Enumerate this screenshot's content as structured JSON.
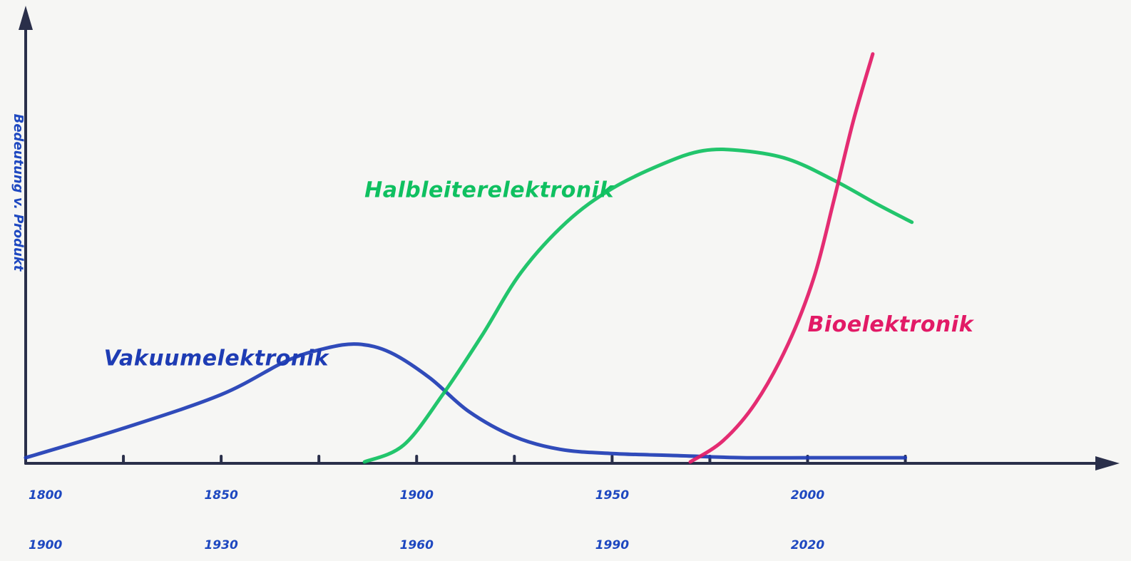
{
  "colors": {
    "axis": "#2a2f4a",
    "vakuum": "#1e3cb4",
    "halbleiter": "#0fc060",
    "bio": "#e21a66",
    "labels": "#1e48c0"
  },
  "chart_data": {
    "type": "line",
    "title": "",
    "xlabel": "",
    "ylabel": "Bedeutung v. Produkt",
    "grid": false,
    "legend": "inline labels",
    "xlim": [
      1900,
      2060
    ],
    "ylim": [
      0,
      100
    ],
    "x_ticks": [
      1900,
      1915,
      1930,
      1945,
      1960,
      1975,
      1990,
      2005,
      2020,
      2035
    ],
    "tick_labels_row1": [
      {
        "x": 1900,
        "label": "1800"
      },
      {
        "x": 1930,
        "label": "1850"
      },
      {
        "x": 1960,
        "label": "1900"
      },
      {
        "x": 1990,
        "label": "1950"
      },
      {
        "x": 2020,
        "label": "2000"
      }
    ],
    "tick_labels_row2": [
      {
        "x": 1900,
        "label": "1900"
      },
      {
        "x": 1930,
        "label": "1930"
      },
      {
        "x": 1960,
        "label": "1960"
      },
      {
        "x": 1990,
        "label": "1990"
      },
      {
        "x": 2020,
        "label": "2020"
      }
    ],
    "series": [
      {
        "name": "Vakuumelektronik",
        "color_key": "vakuum",
        "label_at": [
          1912,
          23
        ],
        "points": [
          [
            1900,
            1
          ],
          [
            1915,
            8
          ],
          [
            1930,
            16
          ],
          [
            1940,
            24
          ],
          [
            1946,
            27
          ],
          [
            1951,
            28
          ],
          [
            1956,
            26
          ],
          [
            1962,
            20
          ],
          [
            1968,
            12
          ],
          [
            1975,
            6
          ],
          [
            1982,
            3
          ],
          [
            1990,
            2
          ],
          [
            2000,
            1.5
          ],
          [
            2010,
            1
          ],
          [
            2020,
            1
          ],
          [
            2035,
            1
          ]
        ]
      },
      {
        "name": "Halbleiterelektronik",
        "color_key": "halbleiter",
        "label_at": [
          1952,
          63
        ],
        "points": [
          [
            1952,
            0
          ],
          [
            1958,
            4
          ],
          [
            1964,
            16
          ],
          [
            1970,
            30
          ],
          [
            1976,
            45
          ],
          [
            1983,
            57
          ],
          [
            1990,
            65
          ],
          [
            1998,
            71
          ],
          [
            2004,
            74
          ],
          [
            2010,
            74
          ],
          [
            2017,
            72
          ],
          [
            2024,
            67
          ],
          [
            2031,
            61
          ],
          [
            2036,
            57
          ]
        ]
      },
      {
        "name": "Bioelektronik",
        "color_key": "bio",
        "label_at": [
          2020,
          31
        ],
        "points": [
          [
            2002,
            0
          ],
          [
            2007,
            5
          ],
          [
            2012,
            14
          ],
          [
            2017,
            28
          ],
          [
            2021,
            44
          ],
          [
            2024,
            62
          ],
          [
            2027,
            81
          ],
          [
            2030,
            97
          ]
        ]
      }
    ]
  }
}
